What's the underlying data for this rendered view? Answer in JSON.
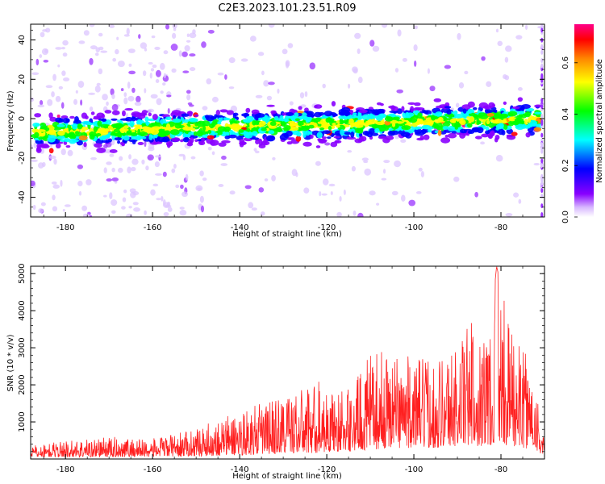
{
  "figure": {
    "title": "C2E3.2023.101.23.51.R09"
  },
  "chart_data": [
    {
      "type": "heatmap",
      "xlabel": "Height of straight line (km)",
      "ylabel": "Frequency (Hz)",
      "xlim": [
        -188,
        -70
      ],
      "ylim": [
        -50,
        48
      ],
      "x_ticks": [
        -180,
        -160,
        -140,
        -120,
        -100,
        -80
      ],
      "y_ticks": [
        -40,
        -20,
        0,
        20,
        40
      ],
      "ridge": {
        "description_x": [
          -188,
          -70
        ],
        "center_frequency_hz": [
          -7,
          0
        ],
        "half_width_hz": 5
      },
      "colorbar": {
        "label": "Normalized spectral amplitude",
        "range": [
          0,
          0.75
        ],
        "ticks": [
          0.0,
          0.2,
          0.4,
          0.6
        ],
        "colormap": [
          "#ffffff",
          "#8800ff",
          "#0000ff",
          "#00ffff",
          "#00ff00",
          "#ffff00",
          "#ff8800",
          "#ff0000",
          "#ff0088"
        ]
      },
      "grid": false
    },
    {
      "type": "line",
      "xlabel": "Height of straight line (km)",
      "ylabel": "SNR (10 * v/v)",
      "xlim": [
        -188,
        -70
      ],
      "ylim": [
        0,
        5200
      ],
      "x_ticks": [
        -180,
        -160,
        -140,
        -120,
        -100,
        -80
      ],
      "y_ticks": [
        1000,
        2000,
        3000,
        4000,
        5000
      ],
      "color": "#ff2020",
      "envelope": {
        "x": [
          -188,
          -180,
          -170,
          -160,
          -150,
          -145,
          -140,
          -135,
          -130,
          -125,
          -122,
          -120,
          -115,
          -110,
          -105,
          -100,
          -95,
          -90,
          -87,
          -85,
          -82,
          -81,
          -78,
          -75,
          -72,
          -70.5
        ],
        "upper": [
          350,
          500,
          600,
          550,
          800,
          1100,
          1300,
          1500,
          1750,
          1900,
          2200,
          1800,
          1900,
          2800,
          3000,
          2700,
          2800,
          3100,
          3800,
          3300,
          4000,
          5200,
          3600,
          3000,
          2300,
          600
        ],
        "lower": [
          50,
          50,
          50,
          60,
          80,
          80,
          100,
          120,
          150,
          150,
          150,
          200,
          200,
          250,
          300,
          300,
          300,
          350,
          350,
          350,
          350,
          400,
          350,
          300,
          250,
          100
        ]
      },
      "grid": false
    }
  ]
}
